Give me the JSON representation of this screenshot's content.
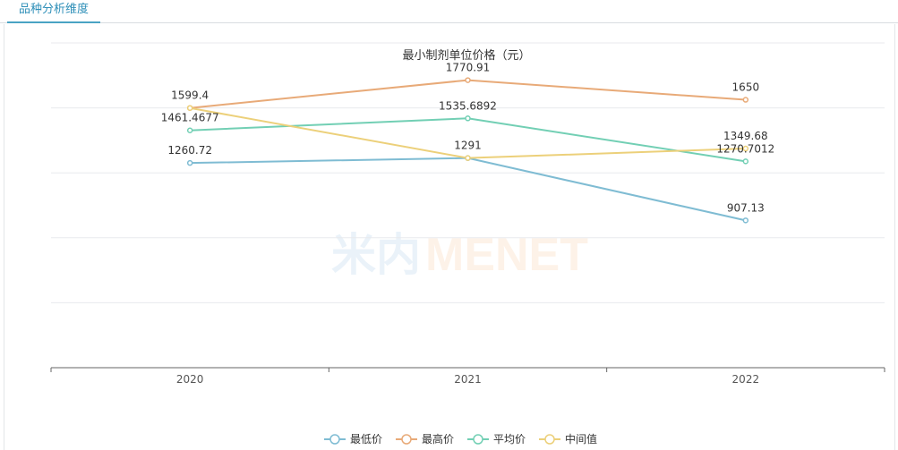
{
  "tab": {
    "label": "品种分析维度"
  },
  "watermark": {
    "cn": "米内",
    "en": "MENET"
  },
  "chart_data": {
    "type": "line",
    "title": "最小制剂单位价格（元）",
    "categories": [
      "2020",
      "2021",
      "2022"
    ],
    "ylim": [
      0,
      2000
    ],
    "y_gridlines": [
      0,
      400,
      800,
      1200,
      1600,
      2000
    ],
    "y_axis_labels_visible": false,
    "legend_position": "bottom-center",
    "series": [
      {
        "name": "最低价",
        "color": "#7fbcd3",
        "values": [
          1260.72,
          1291,
          907.13
        ],
        "labels": [
          "1260.72",
          "1291",
          "907.13"
        ]
      },
      {
        "name": "最高价",
        "color": "#e8aa78",
        "values": [
          1599.4,
          1770.91,
          1650
        ],
        "labels": [
          "1599.4",
          "1770.91",
          "1650"
        ]
      },
      {
        "name": "平均价",
        "color": "#72cfb4",
        "values": [
          1461.4677,
          1535.6892,
          1270.7012
        ],
        "labels": [
          "1461.4677",
          "1535.6892",
          "1270.7012"
        ]
      },
      {
        "name": "中间值",
        "color": "#ecd07a",
        "values": [
          1599.4,
          1291,
          1349.68
        ],
        "labels": [
          "",
          "",
          "1349.68"
        ]
      }
    ]
  }
}
